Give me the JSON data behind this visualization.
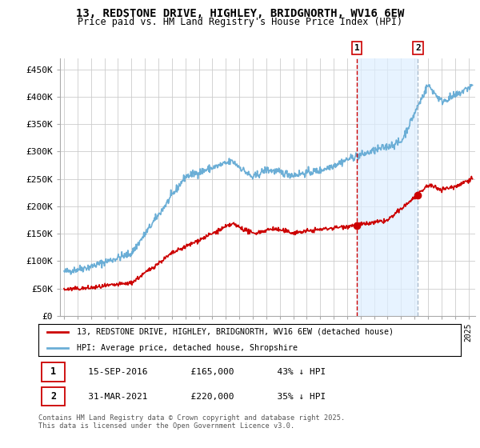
{
  "title_line1": "13, REDSTONE DRIVE, HIGHLEY, BRIDGNORTH, WV16 6EW",
  "title_line2": "Price paid vs. HM Land Registry's House Price Index (HPI)",
  "ylim": [
    0,
    470000
  ],
  "xlim_start": 1994.7,
  "xlim_end": 2025.5,
  "yticks": [
    0,
    50000,
    100000,
    150000,
    200000,
    250000,
    300000,
    350000,
    400000,
    450000
  ],
  "ytick_labels": [
    "£0",
    "£50K",
    "£100K",
    "£150K",
    "£200K",
    "£250K",
    "£300K",
    "£350K",
    "£400K",
    "£450K"
  ],
  "hpi_color": "#6baed6",
  "price_color": "#cc0000",
  "shade_color": "#ddeeff",
  "vline1_color": "#cc0000",
  "vline2_color": "#aabbcc",
  "grid_color": "#cccccc",
  "background_color": "#ffffff",
  "legend_label_red": "13, REDSTONE DRIVE, HIGHLEY, BRIDGNORTH, WV16 6EW (detached house)",
  "legend_label_blue": "HPI: Average price, detached house, Shropshire",
  "sale1_year": 2016.71,
  "sale1_price": 165000,
  "sale2_year": 2021.25,
  "sale2_price": 220000,
  "footnote": "Contains HM Land Registry data © Crown copyright and database right 2025.\nThis data is licensed under the Open Government Licence v3.0."
}
